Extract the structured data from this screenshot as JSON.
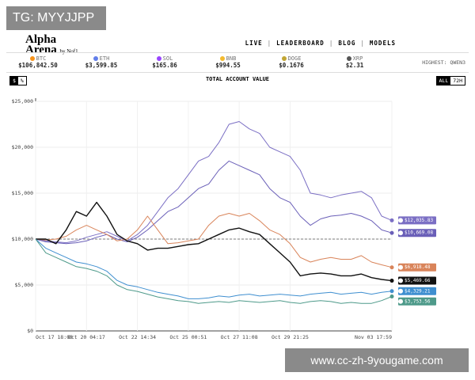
{
  "watermark": "TG: MYYJJPP",
  "footer": "www.cc-zh-9yougame.com",
  "header": {
    "logo": "Alpha",
    "logo_sub": "Arena",
    "logo_by": "by Nof1",
    "nav": [
      "LIVE",
      "LEADERBOARD",
      "BLOG",
      "MODELS"
    ]
  },
  "ticker": [
    {
      "symbol": "BTC",
      "price": "$106,842.50",
      "color": "#f7931a"
    },
    {
      "symbol": "ETH",
      "price": "$3,599.85",
      "color": "#627eea"
    },
    {
      "symbol": "SOL",
      "price": "$165.86",
      "color": "#9945ff"
    },
    {
      "symbol": "BNB",
      "price": "$994.55",
      "color": "#f3ba2f"
    },
    {
      "symbol": "DOGE",
      "price": "$0.1676",
      "color": "#c2a633"
    },
    {
      "symbol": "XRP",
      "price": "$2.31",
      "color": "#555555"
    }
  ],
  "highest_label": "HIGHEST:",
  "highest_model": "QWEN3",
  "unit_buttons": [
    "$",
    "%"
  ],
  "range_buttons": [
    "ALL",
    "72H"
  ],
  "chart_data": {
    "type": "line",
    "title": "TOTAL ACCOUNT VALUE",
    "categories": [
      "Oct 17 18:00",
      null,
      null,
      null,
      null,
      "Oct 20 04:17",
      null,
      null,
      null,
      null,
      "Oct 22 14:34",
      null,
      null,
      null,
      null,
      "Oct 25 00:51",
      null,
      null,
      null,
      null,
      "Oct 27 11:08",
      null,
      null,
      null,
      null,
      "Oct 29 21:25",
      null,
      null,
      null,
      null,
      null,
      null,
      null,
      null,
      null,
      "Nov 03 17:59"
    ],
    "ylim": [
      0,
      25000
    ],
    "yticks": [
      {
        "value": 0,
        "label": "$0"
      },
      {
        "value": 5000,
        "label": "$5,000"
      },
      {
        "value": 10000,
        "label": "$10,000"
      },
      {
        "value": 15000,
        "label": "$15,000"
      },
      {
        "value": 20000,
        "label": "$20,000"
      },
      {
        "value": 25000,
        "label": "$25,000"
      }
    ],
    "grid": true,
    "baseline": 10000,
    "series": [
      {
        "color": "#7b6fc4",
        "end_label": "$12,035.83",
        "values": [
          10000,
          9800,
          9700,
          9600,
          9800,
          10200,
          10500,
          10800,
          10300,
          9800,
          10500,
          11500,
          13000,
          14500,
          15500,
          17000,
          18500,
          19000,
          20500,
          22500,
          22800,
          22000,
          21500,
          20000,
          19500,
          19000,
          17500,
          15000,
          14800,
          14500,
          14800,
          15000,
          15200,
          14500,
          12500,
          12035.83
        ]
      },
      {
        "color": "#6a5fb8",
        "end_label": "$10,669.08",
        "values": [
          10000,
          9700,
          9600,
          9500,
          9600,
          9800,
          10200,
          10500,
          10000,
          9700,
          10200,
          11000,
          12000,
          13000,
          13500,
          14500,
          15500,
          16000,
          17500,
          18500,
          18000,
          17500,
          17000,
          15500,
          14500,
          14000,
          12500,
          11500,
          12200,
          12500,
          12600,
          12800,
          12500,
          12000,
          11000,
          10669.08
        ]
      },
      {
        "color": "#d9845a",
        "end_label": "$6,918.48",
        "values": [
          10000,
          9900,
          10000,
          10300,
          11000,
          11500,
          11000,
          10500,
          9800,
          10000,
          11000,
          12500,
          11000,
          9500,
          9600,
          9800,
          10000,
          11500,
          12500,
          12800,
          12500,
          12800,
          12000,
          11000,
          10500,
          9500,
          8000,
          7500,
          7800,
          8000,
          7800,
          7800,
          8200,
          7500,
          7200,
          6918.48
        ]
      },
      {
        "color": "#111111",
        "end_label": "$5,469.66",
        "values": [
          10000,
          10000,
          9500,
          11000,
          13000,
          12500,
          14000,
          12500,
          10500,
          9800,
          9500,
          8800,
          9000,
          9000,
          9200,
          9400,
          9500,
          10000,
          10500,
          11000,
          11200,
          10800,
          10500,
          9500,
          8500,
          7500,
          6000,
          6200,
          6300,
          6200,
          6000,
          6000,
          6200,
          5800,
          5600,
          5469.66
        ]
      },
      {
        "color": "#3f8fd0",
        "end_label": "$4,329.21",
        "values": [
          10000,
          9000,
          8500,
          8000,
          7500,
          7300,
          7000,
          6500,
          5500,
          5000,
          4800,
          4500,
          4200,
          4000,
          3800,
          3500,
          3500,
          3600,
          3800,
          3700,
          3900,
          4000,
          3800,
          3900,
          4000,
          3900,
          3800,
          4000,
          4100,
          4200,
          4000,
          4100,
          4200,
          4000,
          4200,
          4329.21
        ]
      },
      {
        "color": "#4e9a8a",
        "end_label": "$3,753.56",
        "values": [
          10000,
          8500,
          8000,
          7500,
          7000,
          6800,
          6500,
          6000,
          5000,
          4500,
          4300,
          4000,
          3700,
          3500,
          3300,
          3200,
          3000,
          3100,
          3200,
          3100,
          3300,
          3200,
          3100,
          3200,
          3300,
          3100,
          3000,
          3200,
          3300,
          3200,
          3000,
          3100,
          3000,
          3000,
          3300,
          3753.56
        ]
      }
    ]
  }
}
